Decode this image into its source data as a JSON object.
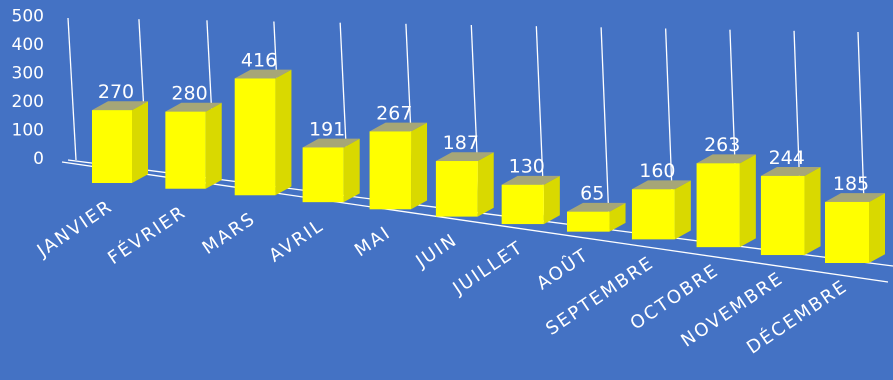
{
  "chart_data": {
    "type": "bar",
    "categories": [
      "JANVIER",
      "FÉVRIER",
      "MARS",
      "AVRIL",
      "MAI",
      "JUIN",
      "JUILLET",
      "AOÛT",
      "SEPTEMBRE",
      "OCTOBRE",
      "NOVEMBRE",
      "DÉCEMBRE"
    ],
    "values": [
      270,
      280,
      416,
      191,
      267,
      187,
      130,
      65,
      160,
      263,
      244,
      185
    ],
    "title": "",
    "xlabel": "",
    "ylabel": "",
    "ylim": [
      0,
      500
    ],
    "yticks": [
      "0",
      "100",
      "200",
      "300",
      "400",
      "500"
    ],
    "grid": "vertical lines",
    "legend": "none",
    "style": "3d-column"
  },
  "colors": {
    "background": "#4472C4",
    "bar_front": "#FFFF00",
    "bar_side": "#D9D900",
    "bar_top": "#A6A677",
    "text": "#FFFFFF",
    "grid": "#FFFFFF"
  }
}
